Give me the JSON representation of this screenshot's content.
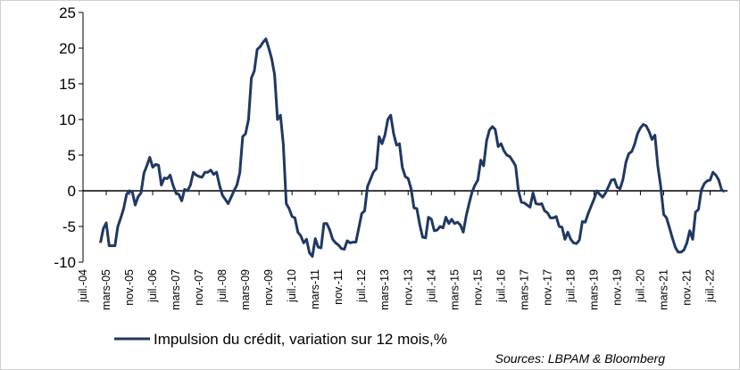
{
  "chart_data": {
    "type": "line",
    "source": "Sources: LBPAM & Bloomberg",
    "categories": [
      "juil.-04",
      null,
      null,
      null,
      null,
      null,
      null,
      null,
      "mars-05",
      null,
      null,
      null,
      null,
      null,
      null,
      null,
      "nov.-05",
      null,
      null,
      null,
      null,
      null,
      null,
      null,
      "juil.-06",
      null,
      null,
      null,
      null,
      null,
      null,
      null,
      "mars-07",
      null,
      null,
      null,
      null,
      null,
      null,
      null,
      "nov.-07",
      null,
      null,
      null,
      null,
      null,
      null,
      null,
      "juil.-08",
      null,
      null,
      null,
      null,
      null,
      null,
      null,
      "mars-09",
      null,
      null,
      null,
      null,
      null,
      null,
      null,
      "nov.-09",
      null,
      null,
      null,
      null,
      null,
      null,
      null,
      "juil.-10",
      null,
      null,
      null,
      null,
      null,
      null,
      null,
      "mars-11",
      null,
      null,
      null,
      null,
      null,
      null,
      null,
      "nov.-11",
      null,
      null,
      null,
      null,
      null,
      null,
      null,
      "juil.-12",
      null,
      null,
      null,
      null,
      null,
      null,
      null,
      "mars-13",
      null,
      null,
      null,
      null,
      null,
      null,
      null,
      "nov.-13",
      null,
      null,
      null,
      null,
      null,
      null,
      null,
      "juil.-14",
      null,
      null,
      null,
      null,
      null,
      null,
      null,
      "mars-15",
      null,
      null,
      null,
      null,
      null,
      null,
      null,
      "nov.-15",
      null,
      null,
      null,
      null,
      null,
      null,
      null,
      "juil.-16",
      null,
      null,
      null,
      null,
      null,
      null,
      null,
      "mars-17",
      null,
      null,
      null,
      null,
      null,
      null,
      null,
      "nov.-17",
      null,
      null,
      null,
      null,
      null,
      null,
      null,
      "juil.-18",
      null,
      null,
      null,
      null,
      null,
      null,
      null,
      "mars-19",
      null,
      null,
      null,
      null,
      null,
      null,
      null,
      "nov.-19",
      null,
      null,
      null,
      null,
      null,
      null,
      null,
      "juil.-20",
      null,
      null,
      null,
      null,
      null,
      null,
      null,
      "mars-21",
      null,
      null,
      null,
      null,
      null,
      null,
      null,
      "nov.-21",
      null,
      null,
      null,
      null,
      null,
      null,
      null,
      "juil.-22",
      null,
      null,
      null,
      null,
      null
    ],
    "series": [
      {
        "name": "Impulsion du crédit, variation sur 12 mois,%",
        "color": "#1f3864",
        "values": [
          null,
          null,
          null,
          null,
          null,
          null,
          -7.3,
          -5.3,
          -4.5,
          -7.7,
          -7.7,
          -7.7,
          -5,
          -3.8,
          -2.5,
          -0.5,
          0,
          -0.2,
          -2,
          -0.8,
          -0.3,
          2.5,
          3.5,
          4.7,
          3.3,
          3.7,
          3.6,
          0.8,
          1.8,
          1.7,
          2.2,
          0.8,
          -0.3,
          -0.5,
          -1.4,
          0.2,
          0,
          0.8,
          2.6,
          2.2,
          2,
          1.9,
          2.6,
          2.6,
          2.9,
          2.3,
          2.6,
          0.8,
          -0.6,
          -1.2,
          -1.8,
          -0.9,
          0,
          0.8,
          2.5,
          7.6,
          8,
          10,
          15.8,
          16.8,
          19.8,
          20.2,
          20.8,
          21.3,
          20,
          18.5,
          16.3,
          10,
          10.6,
          6.5,
          -1.8,
          -2.5,
          -3.6,
          -3.8,
          -5.8,
          -6.3,
          -7.3,
          -6.8,
          -8.7,
          -9.2,
          -6.7,
          -7.9,
          -8,
          -4.6,
          -4.6,
          -5.5,
          -6.8,
          -7.3,
          -7.6,
          -8.1,
          -8.2,
          -7,
          -7.3,
          -7.2,
          -7.2,
          -5.2,
          -3.2,
          -2.8,
          0.6,
          1.6,
          2.6,
          3.1,
          7.6,
          6.6,
          7.8,
          10,
          10.6,
          8,
          6.4,
          6.6,
          3.3,
          2,
          1.7,
          0.3,
          -2.4,
          -2.5,
          -4.8,
          -6.5,
          -6.6,
          -3.7,
          -4,
          -5.6,
          -5.5,
          -5,
          -5.2,
          -3.7,
          -4.6,
          -4,
          -4.6,
          -4.4,
          -4.8,
          -5.8,
          -3.5,
          -1.8,
          -0.2,
          0.8,
          1.5,
          4.3,
          3.5,
          7,
          8.5,
          9,
          8.6,
          6.2,
          6.6,
          5.6,
          5,
          4.8,
          4.2,
          3.5,
          0,
          -1.6,
          -1.7,
          -2,
          -2.3,
          -0.3,
          -1.8,
          -1.9,
          -1.8,
          -2.8,
          -3.1,
          -3.8,
          -3.8,
          -3.6,
          -5,
          -5.1,
          -6.8,
          -5.8,
          -6.8,
          -7.3,
          -7.4,
          -6.9,
          -4.3,
          -4.4,
          -3.2,
          -2.2,
          -1.2,
          0,
          -0.5,
          -0.9,
          -0.3,
          0.6,
          1.5,
          1.6,
          0.5,
          0.3,
          1.6,
          4,
          5.2,
          5.5,
          6.5,
          8,
          8.8,
          9.3,
          9.1,
          8.3,
          7.2,
          7.8,
          3.5,
          0.6,
          -3.3,
          -3.8,
          -5.2,
          -6.6,
          -7.9,
          -8.6,
          -8.6,
          -8.3,
          -7.3,
          -5.6,
          -6.8,
          -3,
          -2.6,
          0.1,
          1,
          1.4,
          1.5,
          2.6,
          2.2,
          1.5,
          0.1,
          -0.1
        ]
      }
    ],
    "ylim": [
      -10,
      25
    ],
    "yticks": [
      -10,
      -5,
      0,
      5,
      10,
      15,
      20,
      25
    ],
    "grid": false,
    "legend": "bottom"
  }
}
